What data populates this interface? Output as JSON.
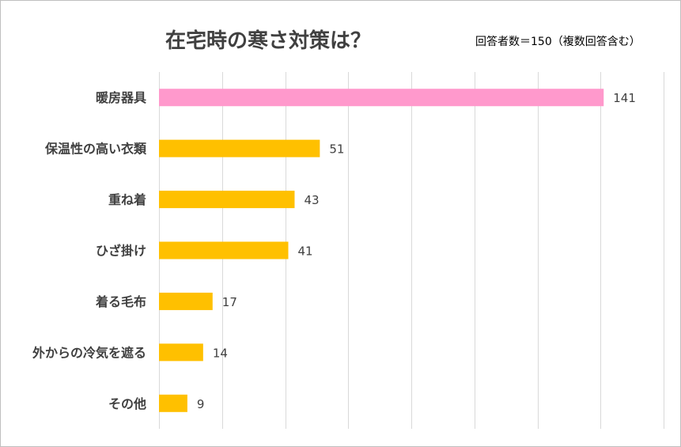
{
  "chart_data": {
    "type": "bar",
    "orientation": "horizontal",
    "title": "在宅時の寒さ対策は？",
    "subtitle": "回答者数＝150（複数回答含む）",
    "categories": [
      "暖房器具",
      "保温性の高い衣類",
      "重ね着",
      "ひざ掛け",
      "着る毛布",
      "外からの冷気を遮る",
      "その他"
    ],
    "values": [
      141,
      51,
      43,
      41,
      17,
      14,
      9
    ],
    "bar_colors": [
      "#ff99cc",
      "#ffc000",
      "#ffc000",
      "#ffc000",
      "#ffc000",
      "#ffc000",
      "#ffc000"
    ],
    "xlim": [
      0,
      160
    ],
    "grid": true,
    "legend": "none",
    "xlabel": "",
    "ylabel": ""
  }
}
